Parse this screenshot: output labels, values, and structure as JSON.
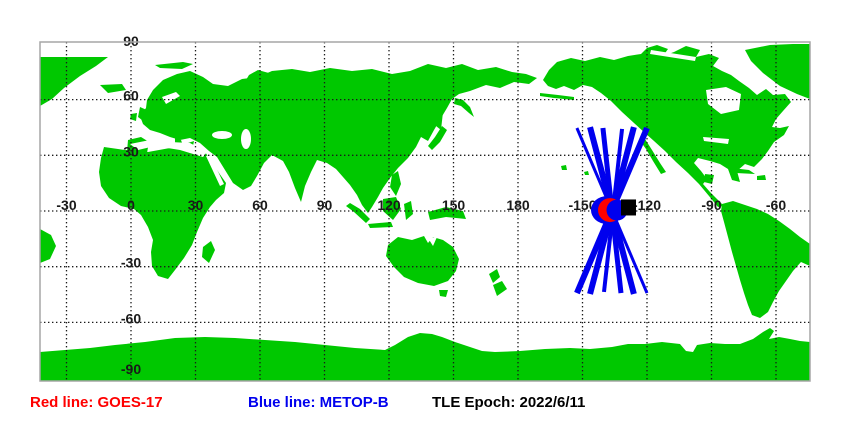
{
  "legend": {
    "red_label": "Red line: GOES-17",
    "blue_label": "Blue line: METOP-B",
    "epoch_label": "TLE Epoch: 2022/6/11"
  },
  "colors": {
    "land": "#00C800",
    "ocean": "#FFFFFF",
    "grid": "#1A1A1A",
    "tick_text": "#1A1A1A",
    "frame": "#A6A6A6",
    "metop_track_blue": "#0000EE",
    "goes_marker_red": "#FF0000",
    "epoch_marker_black": "#000000",
    "legend_red": "#FF0000",
    "legend_blue": "#0000EE",
    "legend_black": "#000000"
  },
  "chart_data": {
    "type": "map",
    "projection": "equirectangular",
    "grid_interval_deg": 30,
    "lon_ticks": [
      {
        "lon": -30,
        "label": "-30"
      },
      {
        "lon": 0,
        "label": "0"
      },
      {
        "lon": 30,
        "label": "30"
      },
      {
        "lon": 60,
        "label": "60"
      },
      {
        "lon": 90,
        "label": "90"
      },
      {
        "lon": 120,
        "label": "120"
      },
      {
        "lon": 150,
        "label": "150"
      },
      {
        "lon": 180,
        "label": "180"
      },
      {
        "lon": -150,
        "label": "-150"
      },
      {
        "lon": -120,
        "label": "-120"
      },
      {
        "lon": -90,
        "label": "-90"
      },
      {
        "lon": -60,
        "label": "-60"
      }
    ],
    "lat_ticks": [
      {
        "lat": 90,
        "label": "90"
      },
      {
        "lat": 60,
        "label": "60"
      },
      {
        "lat": 30,
        "label": "30"
      },
      {
        "lat": -30,
        "label": "-30"
      },
      {
        "lat": -60,
        "label": "-60"
      },
      {
        "lat": -90,
        "label": "-90"
      }
    ],
    "satellites": [
      {
        "name": "GOES-17",
        "line_color": "red",
        "type": "geostationary",
        "position_marker": {
          "lon": -137.2,
          "lat": 0.5,
          "shape": "circle"
        }
      },
      {
        "name": "METOP-B",
        "line_color": "blue",
        "type": "polar-orbiting",
        "position_marker": {
          "lon": -138.6,
          "lat": 0.5,
          "shape": "filled-circle"
        },
        "ground_track_segments": [
          {
            "from": {
              "lon": -152.6,
              "lat": 44.7
            },
            "to": {
              "lon": -120.0,
              "lat": -44.2
            },
            "width": 3
          },
          {
            "from": {
              "lon": -146.5,
              "lat": 45.2
            },
            "to": {
              "lon": -126.1,
              "lat": -44.7
            },
            "width": 6
          },
          {
            "from": {
              "lon": -140.5,
              "lat": 44.7
            },
            "to": {
              "lon": -132.1,
              "lat": -44.2
            },
            "width": 5
          },
          {
            "from": {
              "lon": -120.0,
              "lat": 44.7
            },
            "to": {
              "lon": -152.6,
              "lat": -44.2
            },
            "width": 6
          },
          {
            "from": {
              "lon": -126.1,
              "lat": 45.2
            },
            "to": {
              "lon": -146.5,
              "lat": -44.7
            },
            "width": 6
          },
          {
            "from": {
              "lon": -131.6,
              "lat": 44.2
            },
            "to": {
              "lon": -140.0,
              "lat": -43.6
            },
            "width": 4
          }
        ]
      }
    ],
    "epoch_marker": {
      "lon": -128.6,
      "lat": 1.9,
      "shape": "square"
    },
    "tle_epoch": "2022/6/11"
  }
}
